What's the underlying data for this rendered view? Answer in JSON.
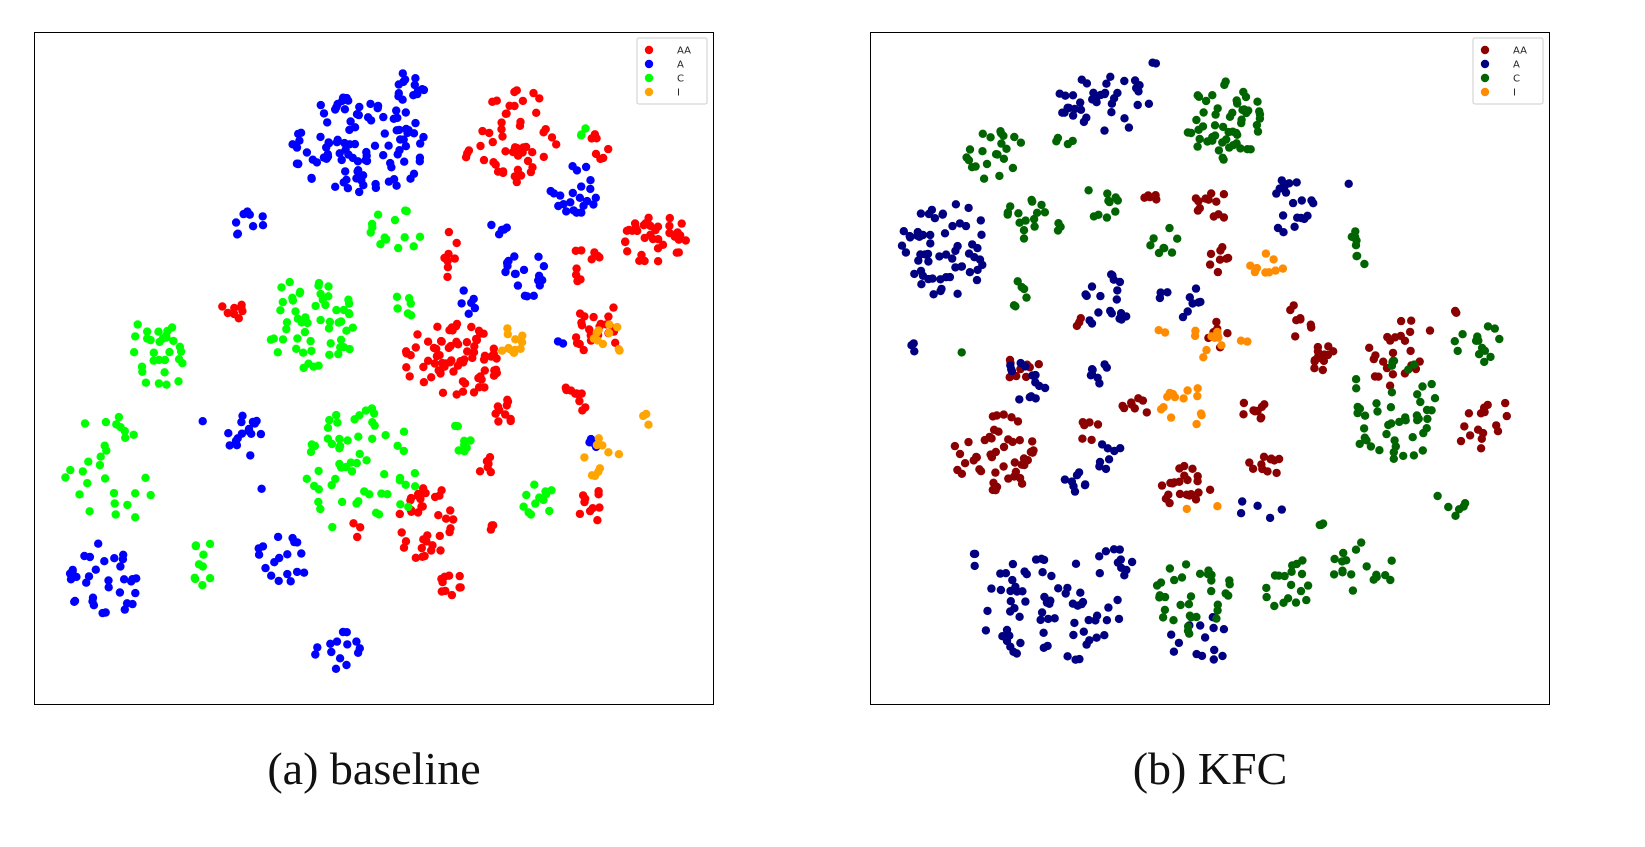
{
  "chart_data": [
    {
      "type": "scatter",
      "caption": "(a) baseline",
      "xlim": [
        0,
        680
      ],
      "ylim": [
        0,
        673
      ],
      "grid": false,
      "legend_position": "top-right",
      "series": [
        {
          "name": "AA",
          "color": "#ff0000",
          "clusters": [
            [
              515,
              135,
              42,
              52,
              48
            ],
            [
              452,
              360,
              48,
              38,
              75
            ],
            [
              655,
              238,
              32,
              30,
              38
            ],
            [
              425,
              525,
              30,
              42,
              36
            ],
            [
              232,
              310,
              11,
              12,
              8
            ],
            [
              600,
              330,
              26,
              28,
              22
            ],
            [
              575,
              400,
              14,
              20,
              10
            ],
            [
              590,
              505,
              14,
              18,
              10
            ],
            [
              450,
              585,
              16,
              12,
              10
            ],
            [
              505,
              410,
              12,
              16,
              10
            ],
            [
              445,
              255,
              14,
              24,
              8
            ],
            [
              585,
              265,
              18,
              18,
              10
            ],
            [
              600,
              145,
              12,
              14,
              8
            ],
            [
              470,
              155,
              6,
              6,
              3
            ],
            [
              485,
              462,
              10,
              14,
              6
            ],
            [
              355,
              530,
              6,
              8,
              3
            ],
            [
              490,
              525,
              6,
              6,
              3
            ]
          ]
        },
        {
          "name": "A",
          "color": "#0000ff",
          "clusters": [
            [
              360,
              145,
              70,
              50,
              105
            ],
            [
              412,
              85,
              18,
              18,
              14
            ],
            [
              575,
              190,
              26,
              26,
              22
            ],
            [
              250,
              225,
              20,
              14,
              9
            ],
            [
              525,
              275,
              22,
              28,
              18
            ],
            [
              245,
              435,
              18,
              22,
              16
            ],
            [
              105,
              580,
              38,
              38,
              34
            ],
            [
              280,
              562,
              28,
              28,
              18
            ],
            [
              338,
              650,
              26,
              20,
              14
            ],
            [
              470,
              300,
              10,
              14,
              6
            ],
            [
              500,
              225,
              10,
              10,
              5
            ],
            [
              595,
              440,
              10,
              10,
              4
            ],
            [
              200,
              422,
              4,
              4,
              1
            ],
            [
              560,
              342,
              6,
              6,
              2
            ],
            [
              265,
              488,
              4,
              4,
              1
            ]
          ]
        },
        {
          "name": "C",
          "color": "#00ff00",
          "clusters": [
            [
              155,
              355,
              38,
              35,
              30
            ],
            [
              310,
              325,
              48,
              48,
              58
            ],
            [
              395,
              232,
              30,
              24,
              14
            ],
            [
              360,
              470,
              60,
              65,
              60
            ],
            [
              110,
              470,
              50,
              55,
              28
            ],
            [
              200,
              565,
              15,
              30,
              10
            ],
            [
              540,
              500,
              18,
              18,
              12
            ],
            [
              460,
              440,
              18,
              16,
              8
            ],
            [
              405,
              310,
              14,
              18,
              6
            ],
            [
              585,
              132,
              6,
              6,
              3
            ]
          ]
        },
        {
          "name": "I",
          "color": "#ffa500",
          "clusters": [
            [
              510,
              340,
              14,
              14,
              12
            ],
            [
              610,
              340,
              22,
              22,
              10
            ],
            [
              600,
              460,
              20,
              22,
              10
            ],
            [
              645,
              425,
              4,
              18,
              3
            ]
          ]
        }
      ]
    },
    {
      "type": "scatter",
      "caption": "(b) KFC",
      "xlim": [
        0,
        680
      ],
      "ylim": [
        0,
        673
      ],
      "grid": false,
      "legend_position": "top-right",
      "series": [
        {
          "name": "AA",
          "color": "#8b0000",
          "clusters": [
            [
              995,
              455,
              42,
              42,
              48
            ],
            [
              1185,
              488,
              26,
              22,
              22
            ],
            [
              1265,
              465,
              16,
              14,
              12
            ],
            [
              1255,
              408,
              14,
              14,
              10
            ],
            [
              1322,
              360,
              16,
              18,
              14
            ],
            [
              1215,
              205,
              22,
              14,
              12
            ],
            [
              1220,
              260,
              14,
              14,
              8
            ],
            [
              1155,
              200,
              12,
              8,
              5
            ],
            [
              1018,
              370,
              24,
              12,
              10
            ],
            [
              1395,
              360,
              34,
              28,
              20
            ],
            [
              1480,
              420,
              30,
              32,
              16
            ],
            [
              1300,
              320,
              16,
              18,
              8
            ],
            [
              1405,
              330,
              30,
              10,
              6
            ],
            [
              1460,
              310,
              10,
              6,
              3
            ],
            [
              1090,
              430,
              12,
              12,
              6
            ],
            [
              1140,
              410,
              22,
              14,
              8
            ],
            [
              1080,
              322,
              6,
              6,
              3
            ],
            [
              1220,
              335,
              12,
              14,
              6
            ]
          ]
        },
        {
          "name": "A",
          "color": "#000080",
          "clusters": [
            [
              945,
              248,
              45,
              48,
              60
            ],
            [
              1105,
              100,
              48,
              32,
              38
            ],
            [
              1290,
              205,
              28,
              30,
              20
            ],
            [
              1105,
              300,
              26,
              30,
              20
            ],
            [
              1025,
              380,
              22,
              22,
              14
            ],
            [
              1100,
              375,
              14,
              14,
              8
            ],
            [
              1075,
              480,
              12,
              12,
              8
            ],
            [
              1110,
              455,
              16,
              16,
              8
            ],
            [
              1050,
              610,
              70,
              55,
              70
            ],
            [
              1112,
              570,
              22,
              22,
              10
            ],
            [
              1180,
              300,
              22,
              18,
              10
            ],
            [
              1155,
              64,
              4,
              2,
              2
            ],
            [
              910,
              348,
              6,
              6,
              3
            ],
            [
              1200,
              640,
              30,
              28,
              14
            ],
            [
              970,
              560,
              10,
              10,
              3
            ],
            [
              1260,
              510,
              30,
              12,
              5
            ],
            [
              1350,
              185,
              2,
              2,
              1
            ]
          ]
        },
        {
          "name": "C",
          "color": "#006400",
          "clusters": [
            [
              1225,
              120,
              40,
              40,
              55
            ],
            [
              995,
              155,
              30,
              26,
              22
            ],
            [
              1035,
              220,
              30,
              26,
              18
            ],
            [
              1100,
              205,
              20,
              20,
              10
            ],
            [
              1165,
              240,
              18,
              14,
              8
            ],
            [
              1395,
              410,
              50,
              50,
              48
            ],
            [
              1480,
              345,
              28,
              20,
              14
            ],
            [
              1360,
              250,
              16,
              20,
              8
            ],
            [
              1195,
              595,
              40,
              40,
              34
            ],
            [
              1290,
              585,
              28,
              28,
              18
            ],
            [
              1360,
              570,
              40,
              28,
              18
            ],
            [
              1065,
              140,
              10,
              10,
              4
            ],
            [
              1020,
              295,
              14,
              14,
              6
            ],
            [
              962,
              352,
              3,
              3,
              1
            ],
            [
              1450,
              500,
              20,
              20,
              6
            ],
            [
              1320,
              520,
              10,
              10,
              3
            ]
          ]
        },
        {
          "name": "I",
          "color": "#ff8c00",
          "clusters": [
            [
              1270,
              265,
              20,
              12,
              9
            ],
            [
              1205,
              345,
              22,
              16,
              10
            ],
            [
              1185,
              405,
              26,
              22,
              14
            ],
            [
              1160,
              335,
              8,
              6,
              2
            ],
            [
              1245,
              345,
              6,
              6,
              2
            ],
            [
              1198,
              505,
              20,
              6,
              2
            ]
          ]
        }
      ]
    }
  ]
}
